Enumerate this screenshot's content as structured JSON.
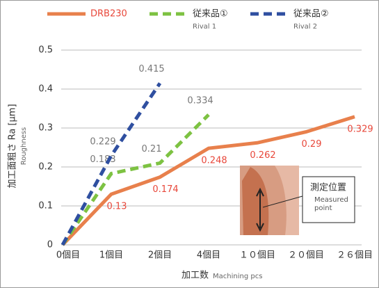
{
  "chart_data": {
    "type": "line",
    "ylabel": "加工面粗さ Ra [μm]",
    "ylabel_sub": "Roughness",
    "xlabel": "加工数",
    "xlabel_sub": "Machining pcs",
    "categories": [
      "0個目",
      "1個目",
      "2個目",
      "4個目",
      "１０個目",
      "２０個目",
      "２６個目"
    ],
    "series": [
      {
        "name": "DRB230",
        "subname": null,
        "color": "#e8804c",
        "dashed": false,
        "label_color": "#e8473a",
        "values": [
          0,
          0.13,
          0.174,
          0.248,
          0.262,
          0.29,
          0.329
        ]
      },
      {
        "name": "従来品①",
        "subname": "Rival 1",
        "color": "#7dc242",
        "dashed": true,
        "label_color": "#777777",
        "values": [
          0,
          0.183,
          0.21,
          0.334,
          null,
          null,
          null
        ]
      },
      {
        "name": "従来品②",
        "subname": "Rival 2",
        "color": "#2f4fa0",
        "dashed": true,
        "label_color": "#777777",
        "values": [
          0,
          0.229,
          0.415,
          null,
          null,
          null,
          null
        ]
      }
    ],
    "ylim": [
      0,
      0.5
    ],
    "yticks": [
      0,
      0.1,
      0.2,
      0.3,
      0.4,
      0.5
    ],
    "grid": true,
    "annotation": {
      "title": "測定位置",
      "text": "Measured point"
    }
  }
}
